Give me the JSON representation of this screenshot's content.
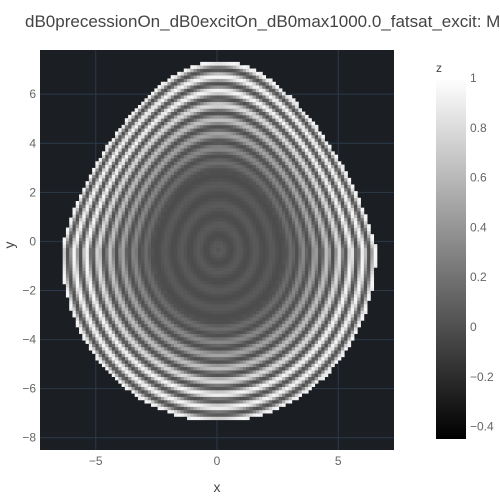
{
  "chart_data": {
    "type": "heatmap",
    "title": "dB0precessionOn_dB0excitOn_dB0max1000.0_fatsat_excit: M",
    "xlabel": "x",
    "ylabel": "y",
    "colorbar_title": "z",
    "xlim": [
      -7.3,
      7.3
    ],
    "ylim": [
      -8.5,
      7.8
    ],
    "xticks": [
      -5,
      0,
      5
    ],
    "xtick_labels": [
      "−5",
      "0",
      "5"
    ],
    "yticks": [
      6,
      4,
      2,
      0,
      -2,
      -4,
      -6,
      -8
    ],
    "ytick_labels": [
      "6",
      "4",
      "2",
      "0",
      "−2",
      "−4",
      "−6",
      "−8"
    ],
    "zlim": [
      -0.45,
      1.0
    ],
    "colorbar_ticks": [
      1,
      0.8,
      0.6,
      0.4,
      0.2,
      0,
      -0.2,
      -0.4
    ],
    "colorbar_tick_labels": [
      "1",
      "0.8",
      "0.6",
      "0.4",
      "0.2",
      "0",
      "−0.2",
      "−0.4"
    ],
    "colorscale": [
      "#000000",
      "#ffffff"
    ],
    "plot_background": "#1b1e23",
    "grid": true,
    "grid_color": "#2b3a4a",
    "legend": "none",
    "phantom": {
      "shape": "brain-slice",
      "center": [
        0,
        -0.4
      ],
      "x_range": [
        -6.5,
        6.5
      ],
      "y_range": [
        -7.4,
        7.3
      ],
      "ring_spacing": 0.55,
      "value_range": [
        0.0,
        0.95
      ]
    }
  }
}
